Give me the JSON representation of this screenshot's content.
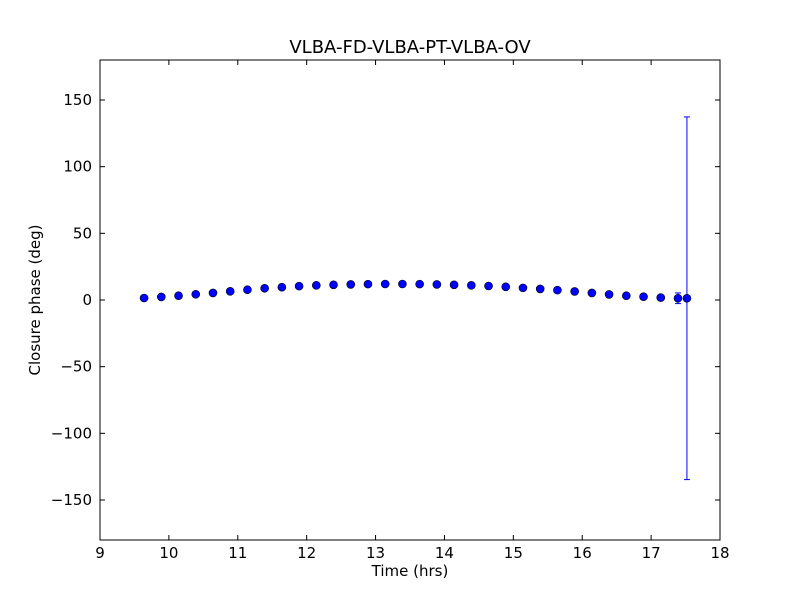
{
  "chart_data": {
    "type": "scatter",
    "title": "VLBA-FD-VLBA-PT-VLBA-OV",
    "xlabel": "Time (hrs)",
    "ylabel": "Closure phase (deg)",
    "xlim": [
      9,
      18
    ],
    "ylim": [
      -180,
      180
    ],
    "x_ticks": [
      9,
      10,
      11,
      12,
      13,
      14,
      15,
      16,
      17,
      18
    ],
    "y_ticks": [
      -150,
      -100,
      -50,
      0,
      50,
      100,
      150
    ],
    "x_tick_labels": [
      "9",
      "10",
      "11",
      "12",
      "13",
      "14",
      "15",
      "16",
      "17",
      "18"
    ],
    "y_tick_labels": [
      "−150",
      "−100",
      "−50",
      "0",
      "50",
      "100",
      "150"
    ],
    "grid": false,
    "marker_color": "#0000ff",
    "errorbar_color": "#0000ff",
    "series": [
      {
        "x": [
          9.64,
          9.89,
          10.14,
          10.39,
          10.64,
          10.89,
          11.14,
          11.39,
          11.64,
          11.89,
          12.14,
          12.39,
          12.64,
          12.89,
          13.14,
          13.39,
          13.64,
          13.89,
          14.14,
          14.39,
          14.64,
          14.89,
          15.14,
          15.39,
          15.64,
          15.89,
          16.14,
          16.39,
          16.64,
          16.89,
          17.14,
          17.39,
          17.52
        ],
        "y": [
          1.5,
          2.3,
          3.2,
          4.3,
          5.3,
          6.5,
          7.7,
          8.8,
          9.6,
          10.4,
          11.0,
          11.4,
          11.7,
          11.9,
          12.0,
          12.0,
          11.9,
          11.7,
          11.4,
          11.0,
          10.5,
          9.9,
          9.1,
          8.3,
          7.4,
          6.4,
          5.3,
          4.2,
          3.2,
          2.5,
          1.8,
          1.3,
          1.3
        ],
        "yerr": [
          1.5,
          1.0,
          1.0,
          1.0,
          1.0,
          1.0,
          1.0,
          1.0,
          1.0,
          1.0,
          1.0,
          1.0,
          1.0,
          1.0,
          1.0,
          1.0,
          1.0,
          1.0,
          1.0,
          1.0,
          1.0,
          1.0,
          1.0,
          1.0,
          1.0,
          1.0,
          1.0,
          1.0,
          1.0,
          1.0,
          1.5,
          4.0,
          136.0
        ]
      }
    ]
  }
}
